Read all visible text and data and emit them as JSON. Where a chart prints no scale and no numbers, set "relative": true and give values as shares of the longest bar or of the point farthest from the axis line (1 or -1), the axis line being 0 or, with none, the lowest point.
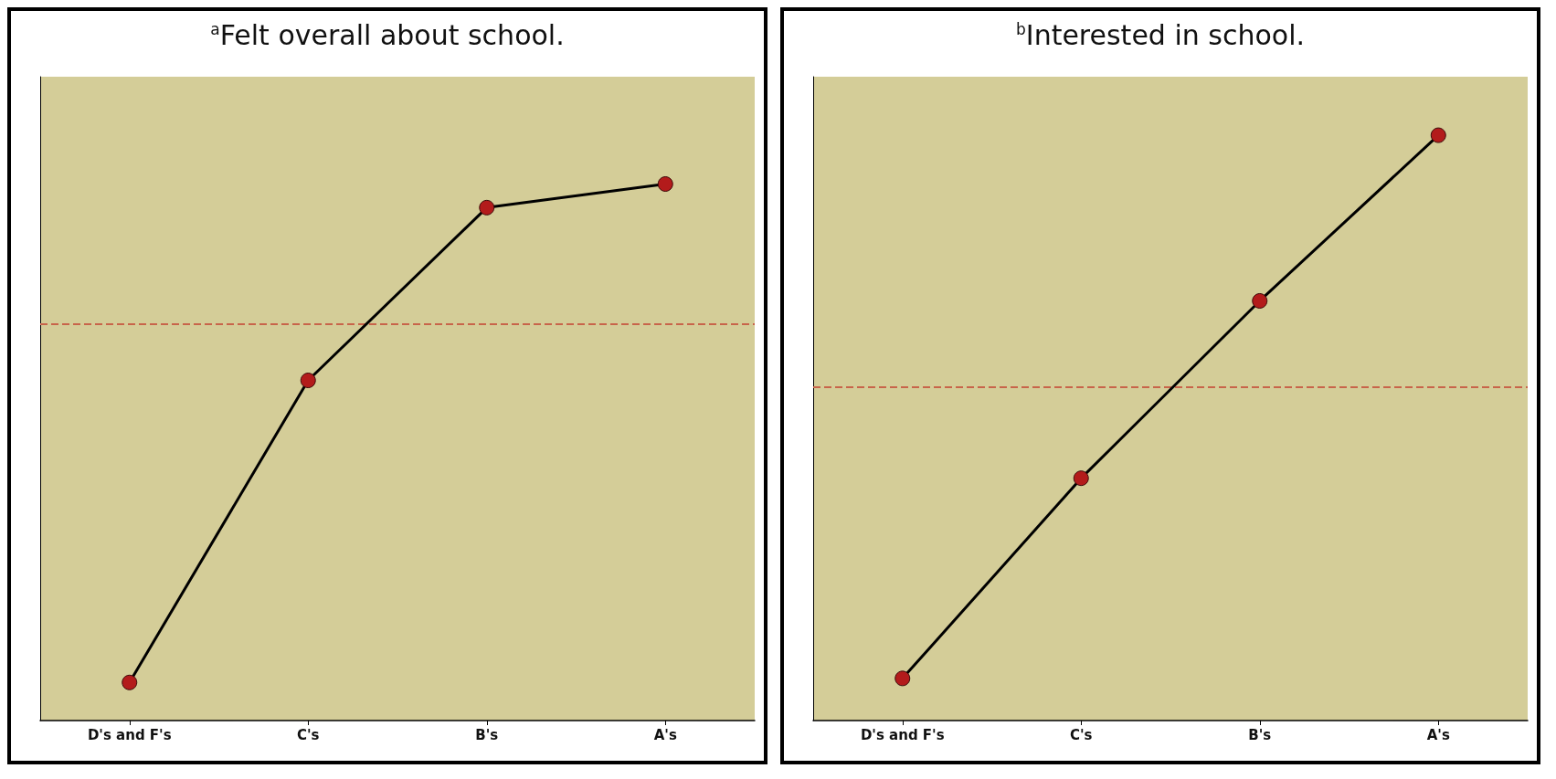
{
  "chart_data": [
    {
      "type": "line",
      "title": "$^{a}$Felt overall about school.",
      "relative": true,
      "categories": [
        "D's and F's",
        "C's",
        "B's",
        "A's"
      ],
      "series": [
        {
          "color": "#000000",
          "values": [
            0.071,
            0.634,
            0.956,
            1
          ]
        }
      ],
      "marker": "circle",
      "line_style": "solid",
      "grid": false,
      "ref_lines": [
        {
          "axis": "y",
          "value": 0.739,
          "color": "#c8644a",
          "line_style": "dashed"
        }
      ]
    },
    {
      "type": "line",
      "title": "$^{b}$Interested in school.",
      "relative": true,
      "categories": [
        "D's and F's",
        "C's",
        "B's",
        "A's"
      ],
      "series": [
        {
          "color": "#000000",
          "values": [
            0.072,
            0.414,
            0.717,
            1
          ]
        }
      ],
      "marker": "circle",
      "line_style": "solid",
      "grid": false,
      "ref_lines": [
        {
          "axis": "y",
          "value": 0.568,
          "color": "#c8644a",
          "line_style": "dashed"
        }
      ]
    }
  ]
}
